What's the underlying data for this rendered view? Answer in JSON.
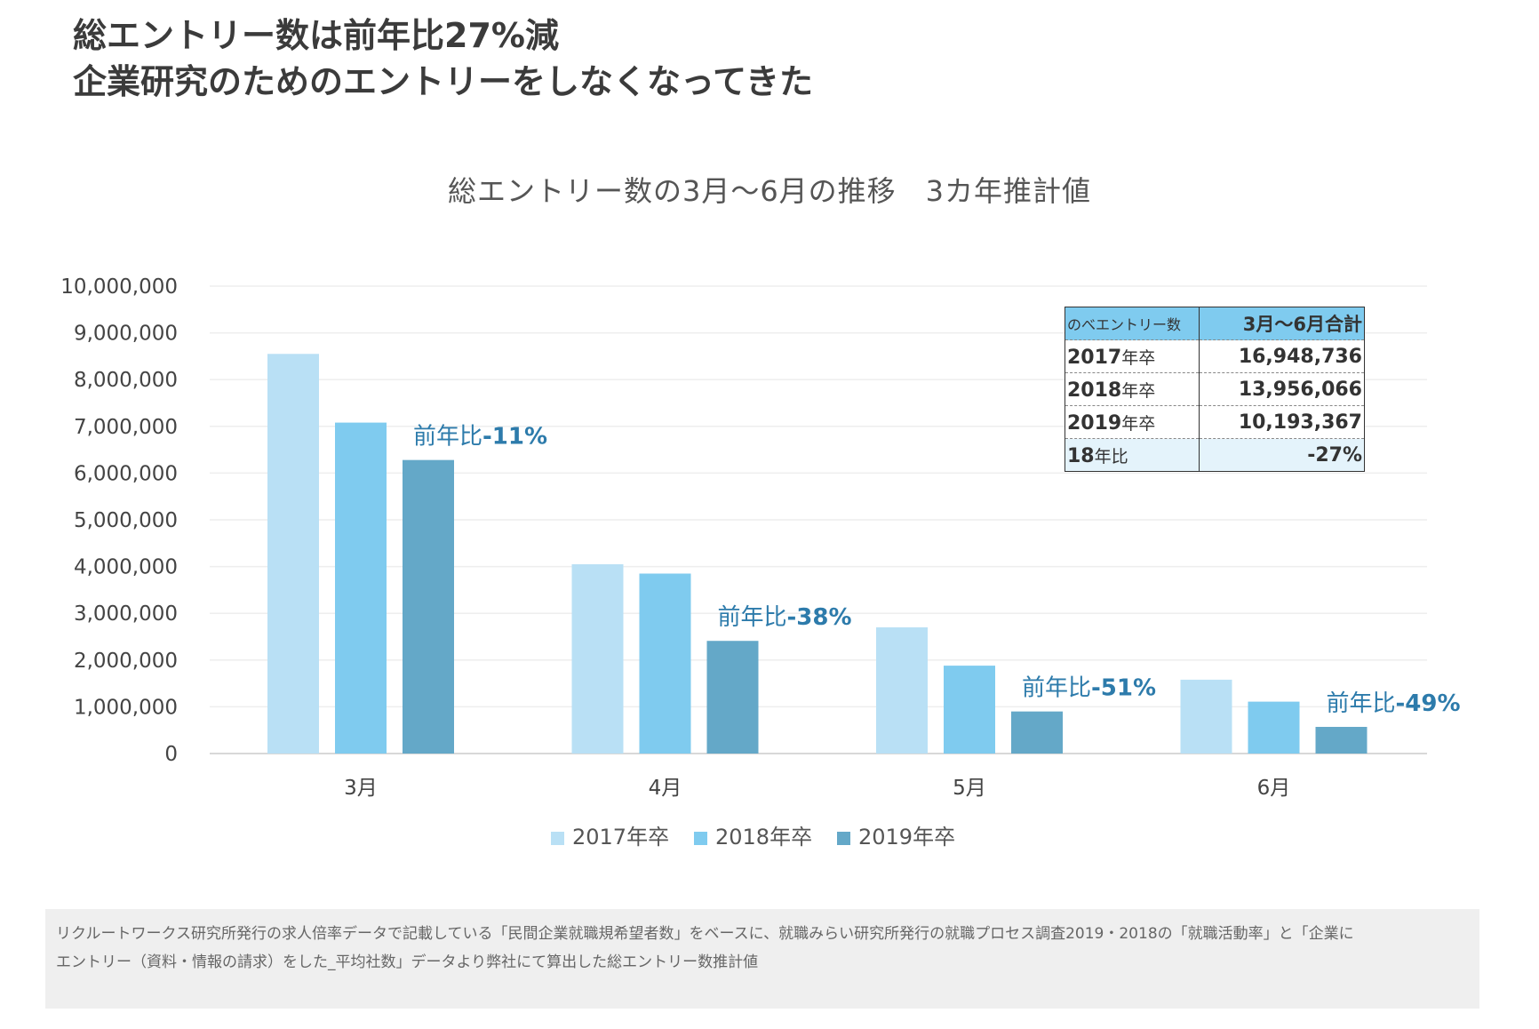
{
  "headline": {
    "line1": "総エントリー数は前年比27%減",
    "line2": "企業研究のためのエントリーをしなくなってきた"
  },
  "chart_data": {
    "type": "bar",
    "title": "総エントリー数の3月～6月の推移　3カ年推計値",
    "categories": [
      "3月",
      "4月",
      "5月",
      "6月"
    ],
    "series": [
      {
        "name": "2017年卒",
        "color": "#b9e0f5",
        "values": [
          8550000,
          4050000,
          2700000,
          1580000
        ]
      },
      {
        "name": "2018年卒",
        "color": "#7fcbef",
        "values": [
          7080000,
          3850000,
          1880000,
          1110000
        ]
      },
      {
        "name": "2019年卒",
        "color": "#64a8c8",
        "values": [
          6280000,
          2410000,
          900000,
          570000
        ]
      }
    ],
    "ylim": [
      0,
      10000000
    ],
    "yticks": [
      "0",
      "1,000,000",
      "2,000,000",
      "3,000,000",
      "4,000,000",
      "5,000,000",
      "6,000,000",
      "7,000,000",
      "8,000,000",
      "9,000,000",
      "10,000,000"
    ],
    "grid": true,
    "legend_position": "bottom",
    "annotations": [
      {
        "prefix": "前年比",
        "value": "-11%"
      },
      {
        "prefix": "前年比",
        "value": "-38%"
      },
      {
        "prefix": "前年比",
        "value": "-51%"
      },
      {
        "prefix": "前年比",
        "value": "-49%"
      }
    ]
  },
  "summary_table": {
    "header": [
      "のべエントリー数",
      "3月～6月合計"
    ],
    "rows": [
      {
        "year": "2017",
        "suffix": "年卒",
        "value": "16,948,736"
      },
      {
        "year": "2018",
        "suffix": "年卒",
        "value": "13,956,066"
      },
      {
        "year": "2019",
        "suffix": "年卒",
        "value": "10,193,367"
      },
      {
        "year": "18",
        "suffix": "年比",
        "value": "-27%"
      }
    ]
  },
  "footnote": {
    "line1": "リクルートワークス研究所発行の求人倍率データで記載している「民間企業就職規希望者数」をベースに、就職みらい研究所発行の就職プロセス調査2019・2018の「就職活動率」と「企業に",
    "line2": "エントリー（資料・情報の請求）をした_平均社数」データより弊社にて算出した総エントリー数推計値"
  }
}
